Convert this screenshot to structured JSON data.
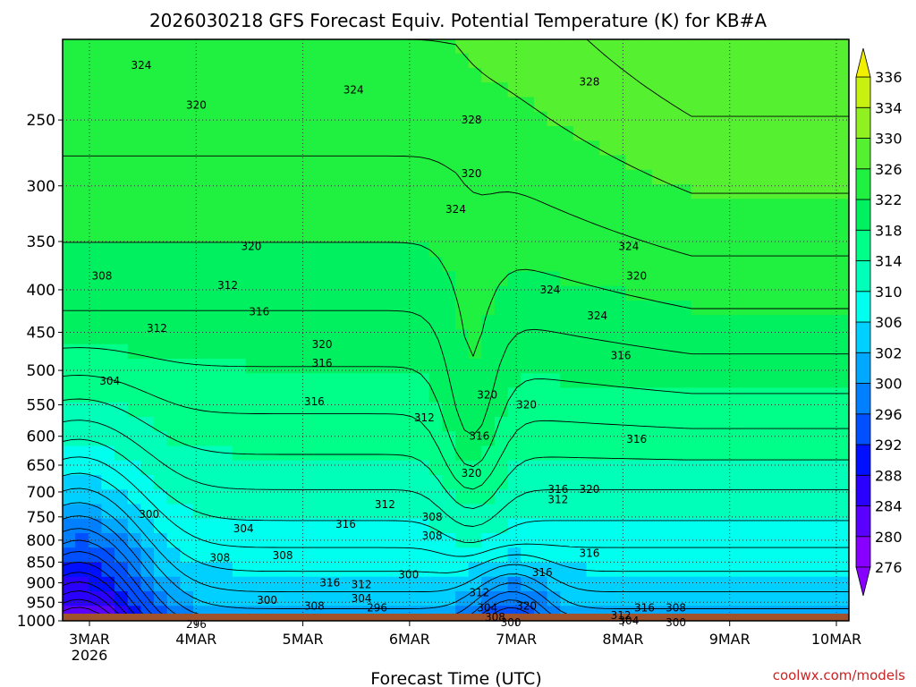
{
  "title": "2026030218 GFS Forecast Equiv. Potential Temperature (K) for KB#A",
  "xlabel": "Forecast Time (UTC)",
  "credit": "coolwx.com/models",
  "chart_data": {
    "type": "heatmap",
    "title": "2026030218 GFS Forecast Equiv. Potential Temperature (K) for KB#A",
    "xlabel": "Forecast Time (UTC)",
    "ylabel": "",
    "x_ticks": [
      "3MAR",
      "4MAR",
      "5MAR",
      "6MAR",
      "7MAR",
      "8MAR",
      "9MAR",
      "10MAR"
    ],
    "x_tick_sub": "2026",
    "y_ticks": [
      250,
      300,
      350,
      400,
      450,
      500,
      550,
      600,
      650,
      700,
      750,
      800,
      850,
      900,
      950,
      1000
    ],
    "y_scale": "log",
    "ylim": [
      1000,
      200
    ],
    "grid": true,
    "colorbar_levels": [
      276,
      280,
      284,
      288,
      292,
      296,
      300,
      302,
      306,
      310,
      314,
      318,
      322,
      326,
      330,
      334,
      336
    ],
    "colorbar_colors": [
      "#8800ff",
      "#5a00ff",
      "#2a00ff",
      "#0010ff",
      "#0050ff",
      "#0080ff",
      "#00a8ff",
      "#00d0ff",
      "#00ffee",
      "#00ffb8",
      "#00ff88",
      "#00f060",
      "#20f040",
      "#55f030",
      "#90f020",
      "#c8f010",
      "#f0f000"
    ],
    "contour_labels": [
      {
        "x": 0.1,
        "p": 215,
        "v": "324"
      },
      {
        "x": 0.37,
        "p": 230,
        "v": "324"
      },
      {
        "x": 0.17,
        "p": 240,
        "v": "320"
      },
      {
        "x": 0.52,
        "p": 290,
        "v": "320"
      },
      {
        "x": 0.52,
        "p": 250,
        "v": "328"
      },
      {
        "x": 0.67,
        "p": 225,
        "v": "328"
      },
      {
        "x": 0.5,
        "p": 320,
        "v": "324"
      },
      {
        "x": 0.24,
        "p": 355,
        "v": "320"
      },
      {
        "x": 0.21,
        "p": 395,
        "v": "312"
      },
      {
        "x": 0.05,
        "p": 385,
        "v": "308"
      },
      {
        "x": 0.25,
        "p": 425,
        "v": "316"
      },
      {
        "x": 0.12,
        "p": 445,
        "v": "312"
      },
      {
        "x": 0.33,
        "p": 465,
        "v": "320"
      },
      {
        "x": 0.33,
        "p": 490,
        "v": "316"
      },
      {
        "x": 0.62,
        "p": 400,
        "v": "324"
      },
      {
        "x": 0.68,
        "p": 430,
        "v": "324"
      },
      {
        "x": 0.72,
        "p": 355,
        "v": "324"
      },
      {
        "x": 0.73,
        "p": 385,
        "v": "320"
      },
      {
        "x": 0.71,
        "p": 480,
        "v": "316"
      },
      {
        "x": 0.06,
        "p": 515,
        "v": "304"
      },
      {
        "x": 0.32,
        "p": 545,
        "v": "316"
      },
      {
        "x": 0.54,
        "p": 535,
        "v": "320"
      },
      {
        "x": 0.59,
        "p": 550,
        "v": "320"
      },
      {
        "x": 0.46,
        "p": 570,
        "v": "312"
      },
      {
        "x": 0.53,
        "p": 600,
        "v": "316"
      },
      {
        "x": 0.73,
        "p": 605,
        "v": "316"
      },
      {
        "x": 0.52,
        "p": 665,
        "v": "320"
      },
      {
        "x": 0.63,
        "p": 695,
        "v": "316"
      },
      {
        "x": 0.67,
        "p": 695,
        "v": "320"
      },
      {
        "x": 0.63,
        "p": 715,
        "v": "312"
      },
      {
        "x": 0.41,
        "p": 725,
        "v": "312"
      },
      {
        "x": 0.11,
        "p": 745,
        "v": "300"
      },
      {
        "x": 0.47,
        "p": 750,
        "v": "308"
      },
      {
        "x": 0.36,
        "p": 765,
        "v": "316"
      },
      {
        "x": 0.23,
        "p": 775,
        "v": "304"
      },
      {
        "x": 0.47,
        "p": 790,
        "v": "308"
      },
      {
        "x": 0.67,
        "p": 830,
        "v": "316"
      },
      {
        "x": 0.2,
        "p": 840,
        "v": "308"
      },
      {
        "x": 0.28,
        "p": 835,
        "v": "308"
      },
      {
        "x": 0.61,
        "p": 875,
        "v": "316"
      },
      {
        "x": 0.44,
        "p": 880,
        "v": "300"
      },
      {
        "x": 0.34,
        "p": 900,
        "v": "316"
      },
      {
        "x": 0.38,
        "p": 905,
        "v": "312"
      },
      {
        "x": 0.53,
        "p": 925,
        "v": "312"
      },
      {
        "x": 0.38,
        "p": 940,
        "v": "304"
      },
      {
        "x": 0.26,
        "p": 945,
        "v": "300"
      },
      {
        "x": 0.32,
        "p": 960,
        "v": "308"
      },
      {
        "x": 0.4,
        "p": 965,
        "v": "296"
      },
      {
        "x": 0.54,
        "p": 965,
        "v": "304"
      },
      {
        "x": 0.59,
        "p": 960,
        "v": "320"
      },
      {
        "x": 0.71,
        "p": 985,
        "v": "312"
      },
      {
        "x": 0.74,
        "p": 965,
        "v": "316"
      },
      {
        "x": 0.78,
        "p": 965,
        "v": "308"
      },
      {
        "x": 0.55,
        "p": 990,
        "v": "308"
      },
      {
        "x": 0.57,
        "p": 1005,
        "v": "300"
      },
      {
        "x": 0.72,
        "p": 1000,
        "v": "304"
      },
      {
        "x": 0.78,
        "p": 1005,
        "v": "300"
      },
      {
        "x": 0.17,
        "p": 1010,
        "v": "296"
      }
    ]
  }
}
